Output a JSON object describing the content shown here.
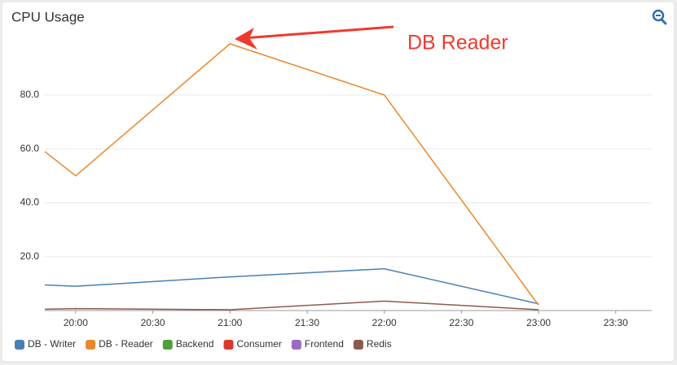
{
  "chart_data": {
    "type": "line",
    "title": "CPU Usage",
    "annotation": "DB Reader",
    "x": [
      "19:48",
      "20:00",
      "21:00",
      "22:00",
      "23:00"
    ],
    "xlim": [
      "19:48",
      "23:44"
    ],
    "xticks": [
      "20:00",
      "20:30",
      "21:00",
      "21:30",
      "22:00",
      "22:30",
      "23:00",
      "23:30"
    ],
    "ylim": [
      0,
      105
    ],
    "yticks": [
      {
        "value": 20,
        "label": "20.0"
      },
      {
        "value": 40,
        "label": "40.0"
      },
      {
        "value": 60,
        "label": "60.0"
      },
      {
        "value": 80,
        "label": "80.0"
      }
    ],
    "grid": true,
    "legend": "bottom-left",
    "series": [
      {
        "name": "DB - Writer",
        "color": "#4a7fb5",
        "values": [
          9.5,
          9,
          12.5,
          15.5,
          2.5
        ]
      },
      {
        "name": "DB - Reader",
        "color": "#e8882c",
        "values": [
          59,
          50,
          99,
          80,
          2
        ]
      },
      {
        "name": "Backend",
        "color": "#4fa03a",
        "values": [
          null,
          null,
          null,
          null,
          null
        ]
      },
      {
        "name": "Consumer",
        "color": "#d9382e",
        "values": [
          null,
          null,
          null,
          null,
          null
        ]
      },
      {
        "name": "Frontend",
        "color": "#9b6bc6",
        "values": [
          null,
          null,
          null,
          null,
          null
        ]
      },
      {
        "name": "Redis",
        "color": "#8b5a4e",
        "values": [
          0.5,
          0.7,
          0.3,
          3.5,
          0.3
        ]
      }
    ]
  }
}
